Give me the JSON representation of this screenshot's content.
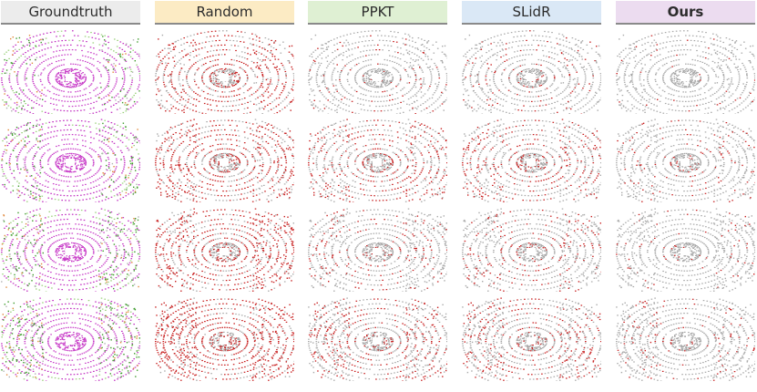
{
  "headers": [
    {
      "label": "Groundtruth",
      "color": "#ececec",
      "text_color": "#2c2c2c"
    },
    {
      "label": "Random",
      "color": "#fcebc4",
      "text_color": "#2c2c2c"
    },
    {
      "label": "PPKT",
      "color": "#dff0d3",
      "text_color": "#2c2c2c"
    },
    {
      "label": "SLidR",
      "color": "#dae8f6",
      "text_color": "#2c2c2c"
    },
    {
      "label": "Ours",
      "color": "#ecdcf0",
      "text_color": "#2c2c2c"
    }
  ],
  "rows": 4,
  "palette": {
    "correct": "#a9a9a9",
    "error": "#c71f1f",
    "ground_road": "#c83ec8",
    "sidewalk": "#c02cc0",
    "vegetation": "#3c9a2a",
    "terrain": "#9ad07a",
    "vehicle": "#e0873a",
    "car_teal": "#2e8b94",
    "building": "#b0b0b0",
    "ego": "#ffffff"
  },
  "error_density": {
    "Groundtruth": [
      0,
      0,
      0,
      0
    ],
    "Random": [
      0.55,
      0.6,
      0.6,
      0.7
    ],
    "PPKT": [
      0.1,
      0.4,
      0.2,
      0.35
    ],
    "SLidR": [
      0.12,
      0.35,
      0.18,
      0.3
    ],
    "Ours": [
      0.04,
      0.15,
      0.08,
      0.12
    ]
  }
}
